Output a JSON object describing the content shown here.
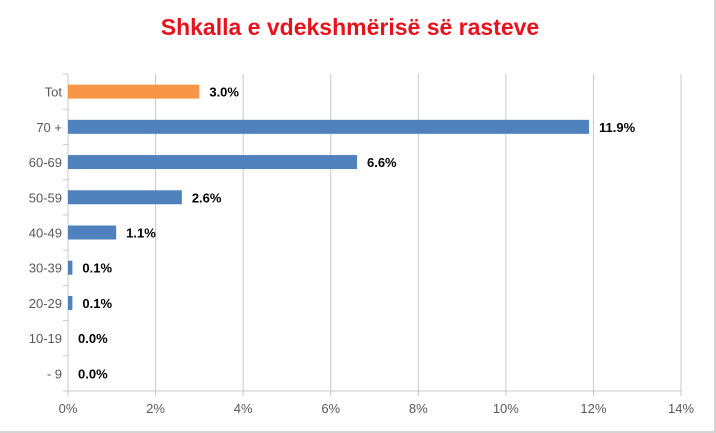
{
  "chart_data": {
    "type": "bar",
    "orientation": "horizontal",
    "title": "Shkalla e vdekshmërisë së rasteve",
    "categories": [
      "Tot",
      "70 +",
      "60-69",
      "50-59",
      "40-49",
      "30-39",
      "20-29",
      "10-19",
      "- 9"
    ],
    "values": [
      3.0,
      11.9,
      6.6,
      2.6,
      1.1,
      0.1,
      0.1,
      0.0,
      0.0
    ],
    "data_labels": [
      "3.0%",
      "11.9%",
      "6.6%",
      "2.6%",
      "1.1%",
      "0.1%",
      "0.1%",
      "0.0%",
      "0.0%"
    ],
    "xlim": [
      0,
      14
    ],
    "x_ticks": [
      "0%",
      "2%",
      "4%",
      "6%",
      "8%",
      "10%",
      "12%",
      "14%"
    ],
    "grid": true,
    "colors": {
      "highlight": "#f79646",
      "bar": "#4f81bd",
      "title": "#e8121c",
      "grid": "#c8c8c8"
    }
  }
}
